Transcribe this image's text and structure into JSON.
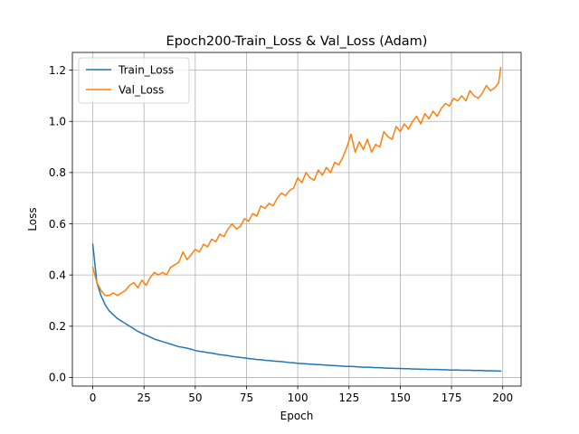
{
  "chart_data": {
    "type": "line",
    "title": "Epoch200-Train_Loss & Val_Loss (Adam)",
    "xlabel": "Epoch",
    "ylabel": "Loss",
    "xlim": [
      -9.95,
      208.95
    ],
    "ylim": [
      -0.0338,
      1.2692
    ],
    "xticks": [
      0,
      25,
      50,
      75,
      100,
      125,
      150,
      175,
      200
    ],
    "yticks": [
      0.0,
      0.2,
      0.4,
      0.6,
      0.8,
      1.0,
      1.2
    ],
    "xtick_labels": [
      "0",
      "25",
      "50",
      "75",
      "100",
      "125",
      "150",
      "175",
      "200"
    ],
    "ytick_labels": [
      "0.0",
      "0.2",
      "0.4",
      "0.6",
      "0.8",
      "1.0",
      "1.2"
    ],
    "grid": true,
    "legend_position": "top-left",
    "x": [
      0,
      2,
      4,
      6,
      8,
      10,
      12,
      14,
      16,
      18,
      20,
      22,
      24,
      26,
      28,
      30,
      32,
      34,
      36,
      38,
      40,
      42,
      44,
      46,
      48,
      50,
      52,
      54,
      56,
      58,
      60,
      62,
      64,
      66,
      68,
      70,
      72,
      74,
      76,
      78,
      80,
      82,
      84,
      86,
      88,
      90,
      92,
      94,
      96,
      98,
      100,
      102,
      104,
      106,
      108,
      110,
      112,
      114,
      116,
      118,
      120,
      122,
      124,
      126,
      128,
      130,
      132,
      134,
      136,
      138,
      140,
      142,
      144,
      146,
      148,
      150,
      152,
      154,
      156,
      158,
      160,
      162,
      164,
      166,
      168,
      170,
      172,
      174,
      176,
      178,
      180,
      182,
      184,
      186,
      188,
      190,
      192,
      194,
      196,
      198,
      199
    ],
    "series": [
      {
        "name": "Train_Loss",
        "color": "#1f77b4",
        "values": [
          0.52,
          0.37,
          0.32,
          0.285,
          0.26,
          0.245,
          0.23,
          0.22,
          0.21,
          0.2,
          0.19,
          0.18,
          0.172,
          0.165,
          0.158,
          0.15,
          0.145,
          0.14,
          0.135,
          0.13,
          0.125,
          0.12,
          0.117,
          0.114,
          0.11,
          0.105,
          0.102,
          0.1,
          0.097,
          0.095,
          0.092,
          0.089,
          0.087,
          0.085,
          0.082,
          0.08,
          0.078,
          0.076,
          0.074,
          0.072,
          0.07,
          0.069,
          0.067,
          0.066,
          0.064,
          0.063,
          0.062,
          0.06,
          0.058,
          0.057,
          0.055,
          0.054,
          0.053,
          0.052,
          0.051,
          0.05,
          0.049,
          0.048,
          0.047,
          0.046,
          0.045,
          0.044,
          0.043,
          0.043,
          0.042,
          0.041,
          0.04,
          0.04,
          0.039,
          0.038,
          0.038,
          0.037,
          0.036,
          0.036,
          0.035,
          0.035,
          0.034,
          0.034,
          0.033,
          0.033,
          0.032,
          0.032,
          0.031,
          0.031,
          0.031,
          0.03,
          0.03,
          0.029,
          0.029,
          0.029,
          0.028,
          0.028,
          0.028,
          0.027,
          0.027,
          0.027,
          0.026,
          0.026,
          0.026,
          0.025,
          0.025
        ]
      },
      {
        "name": "Val_Loss",
        "color": "#ff7f0e",
        "values": [
          0.43,
          0.37,
          0.34,
          0.32,
          0.32,
          0.33,
          0.32,
          0.33,
          0.34,
          0.36,
          0.37,
          0.35,
          0.38,
          0.36,
          0.39,
          0.41,
          0.4,
          0.41,
          0.4,
          0.43,
          0.44,
          0.45,
          0.49,
          0.46,
          0.48,
          0.5,
          0.49,
          0.52,
          0.51,
          0.54,
          0.53,
          0.56,
          0.55,
          0.58,
          0.6,
          0.58,
          0.59,
          0.62,
          0.61,
          0.64,
          0.63,
          0.67,
          0.66,
          0.68,
          0.67,
          0.7,
          0.72,
          0.71,
          0.73,
          0.74,
          0.78,
          0.76,
          0.8,
          0.78,
          0.77,
          0.81,
          0.79,
          0.82,
          0.8,
          0.84,
          0.83,
          0.86,
          0.9,
          0.95,
          0.88,
          0.92,
          0.89,
          0.93,
          0.88,
          0.91,
          0.9,
          0.96,
          0.94,
          0.93,
          0.98,
          0.96,
          0.99,
          0.97,
          1.0,
          1.02,
          0.99,
          1.03,
          1.01,
          1.04,
          1.02,
          1.05,
          1.07,
          1.06,
          1.09,
          1.08,
          1.1,
          1.08,
          1.12,
          1.1,
          1.09,
          1.11,
          1.14,
          1.12,
          1.13,
          1.15,
          1.21
        ]
      }
    ]
  }
}
